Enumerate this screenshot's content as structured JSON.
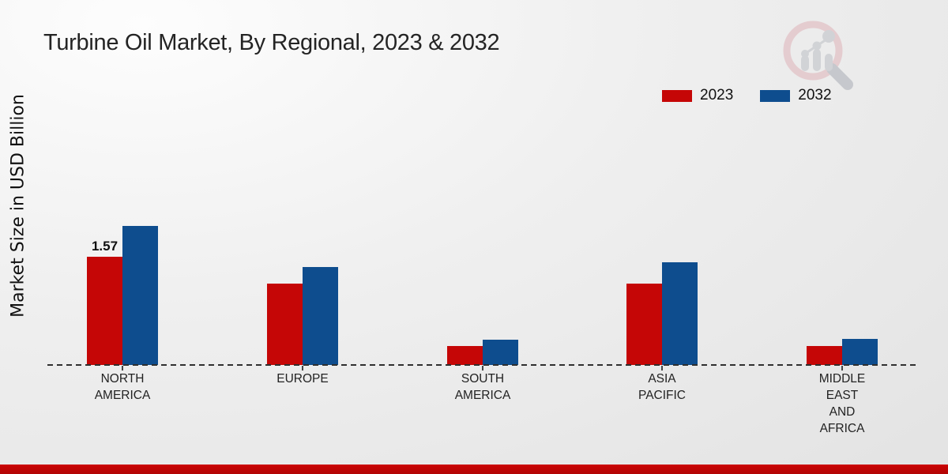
{
  "title": "Turbine Oil Market, By Regional, 2023 & 2032",
  "y_axis_label": "Market Size in USD Billion",
  "legend": {
    "items": [
      {
        "label": "2023",
        "color": "#c50606"
      },
      {
        "label": "2032",
        "color": "#0e4d8e"
      }
    ]
  },
  "branding": {
    "logo_icon": "magnifier-bar-chart-logo",
    "ring_color": "#dfb3b9",
    "element_color": "#bcbfc5"
  },
  "footer": {
    "bar_color_top": "#cc0404",
    "bar_color_bottom": "#b10404"
  },
  "chart_data": {
    "type": "bar",
    "title": "Turbine Oil Market, By Regional, 2023 & 2032",
    "xlabel": "",
    "ylabel": "Market Size in USD Billion",
    "unit": "USD Billion",
    "categories": [
      "NORTH\nAMERICA",
      "EUROPE",
      "SOUTH\nAMERICA",
      "ASIA\nPACIFIC",
      "MIDDLE\nEAST\nAND\nAFRICA"
    ],
    "series": [
      {
        "name": "2023",
        "color": "#c50606",
        "values": [
          1.57,
          1.18,
          0.28,
          1.18,
          0.28
        ]
      },
      {
        "name": "2032",
        "color": "#0e4d8e",
        "values": [
          2.02,
          1.43,
          0.37,
          1.49,
          0.38
        ]
      }
    ],
    "annotations": [
      {
        "series_index": 0,
        "category_index": 0,
        "text": "1.57"
      }
    ],
    "ylim": [
      0,
      2.2
    ],
    "baseline_style": "dashed",
    "grid": false,
    "legend_position": "top-right"
  }
}
